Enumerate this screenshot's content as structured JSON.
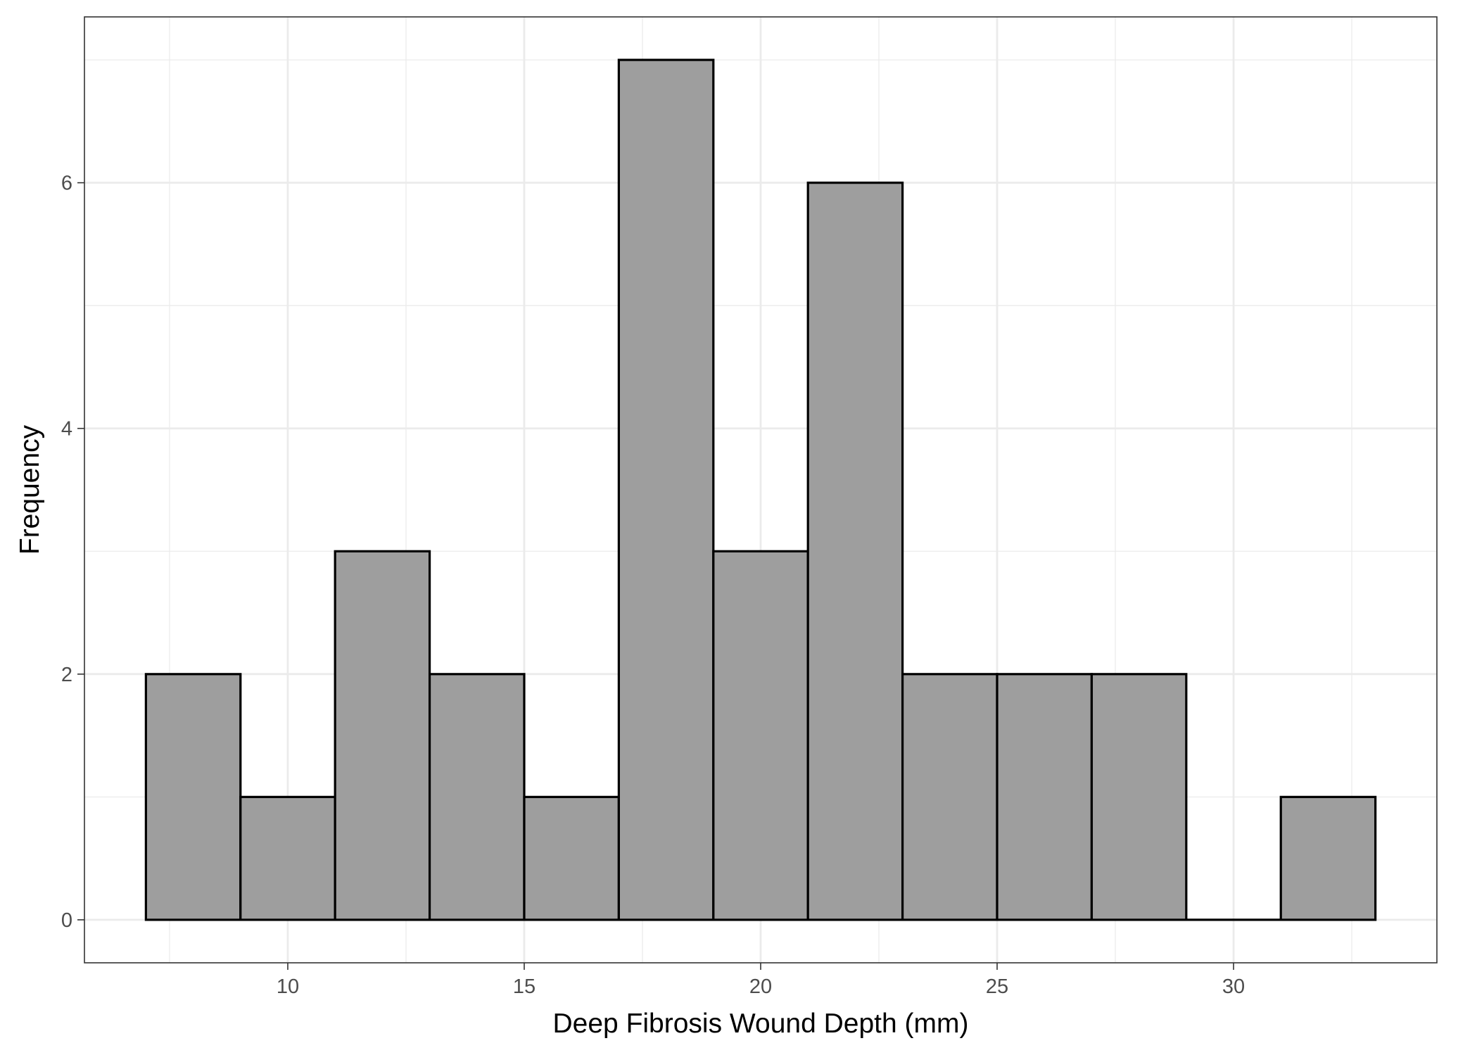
{
  "chart_data": {
    "type": "bar",
    "subtype": "histogram",
    "title": "",
    "xlabel": "Deep Fibrosis Wound Depth (mm)",
    "ylabel": "Frequency",
    "bins": [
      {
        "start": 7,
        "end": 9,
        "count": 2
      },
      {
        "start": 9,
        "end": 11,
        "count": 1
      },
      {
        "start": 11,
        "end": 13,
        "count": 3
      },
      {
        "start": 13,
        "end": 15,
        "count": 2
      },
      {
        "start": 15,
        "end": 17,
        "count": 1
      },
      {
        "start": 17,
        "end": 19,
        "count": 7
      },
      {
        "start": 19,
        "end": 21,
        "count": 3
      },
      {
        "start": 21,
        "end": 23,
        "count": 6
      },
      {
        "start": 23,
        "end": 25,
        "count": 2
      },
      {
        "start": 25,
        "end": 27,
        "count": 2
      },
      {
        "start": 27,
        "end": 29,
        "count": 2
      },
      {
        "start": 29,
        "end": 31,
        "count": 0
      },
      {
        "start": 31,
        "end": 33,
        "count": 1
      }
    ],
    "xlim": [
      5.7,
      34.3
    ],
    "ylim": [
      -0.35,
      7.35
    ],
    "xticks": [
      10,
      15,
      20,
      25,
      30
    ],
    "yticks": [
      0,
      2,
      4,
      6
    ],
    "xminor": [
      7.5,
      12.5,
      17.5,
      22.5,
      27.5,
      32.5
    ],
    "yminor": [
      1,
      3,
      5,
      7
    ],
    "grid": true,
    "bar_fill": "#9e9e9e",
    "bar_stroke": "#000000",
    "grid_color": "#ebebeb"
  }
}
